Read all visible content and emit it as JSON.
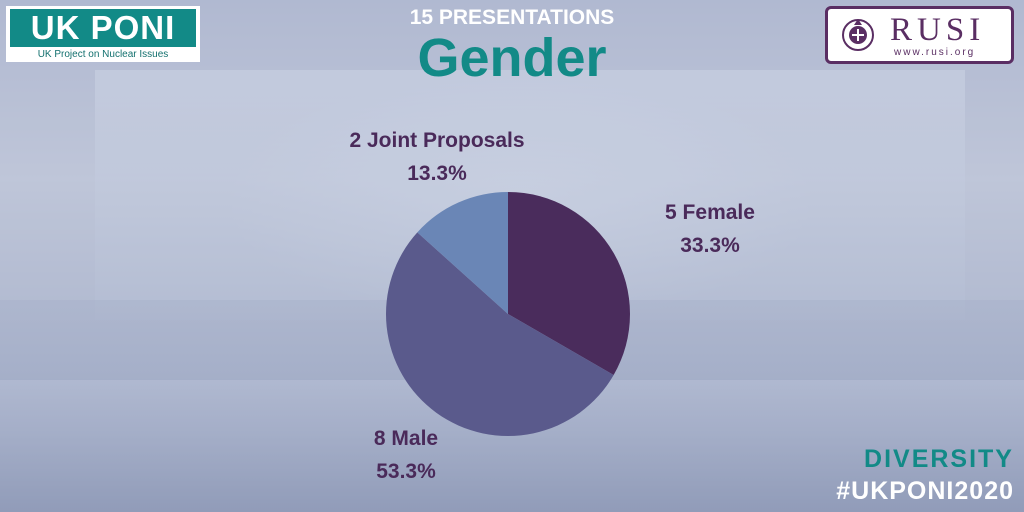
{
  "header": {
    "subtitle": "15 PRESENTATIONS",
    "title": "Gender"
  },
  "logos": {
    "ukponi": {
      "main": "UK PONI",
      "sub": "UK Project on Nuclear Issues"
    },
    "rusi": {
      "main": "RUSI",
      "url": "www.rusi.org"
    }
  },
  "footer": {
    "tag": "DIVERSITY",
    "hashtag": "#UKPONI2020"
  },
  "colors": {
    "teal": "#128a87",
    "female": "#4a2c5c",
    "male": "#5a5a8c",
    "joint": "#6a86b6",
    "label": "#4a2a5a"
  },
  "chart_data": {
    "type": "pie",
    "title": "Gender",
    "slices": [
      {
        "label": "5 Female",
        "pct": "33.3%",
        "value": 5,
        "color": "#4a2c5c"
      },
      {
        "label": "8 Male",
        "pct": "53.3%",
        "value": 8,
        "color": "#5a5a8c"
      },
      {
        "label": "2 Joint Proposals",
        "pct": "13.3%",
        "value": 2,
        "color": "#6a86b6"
      }
    ]
  }
}
